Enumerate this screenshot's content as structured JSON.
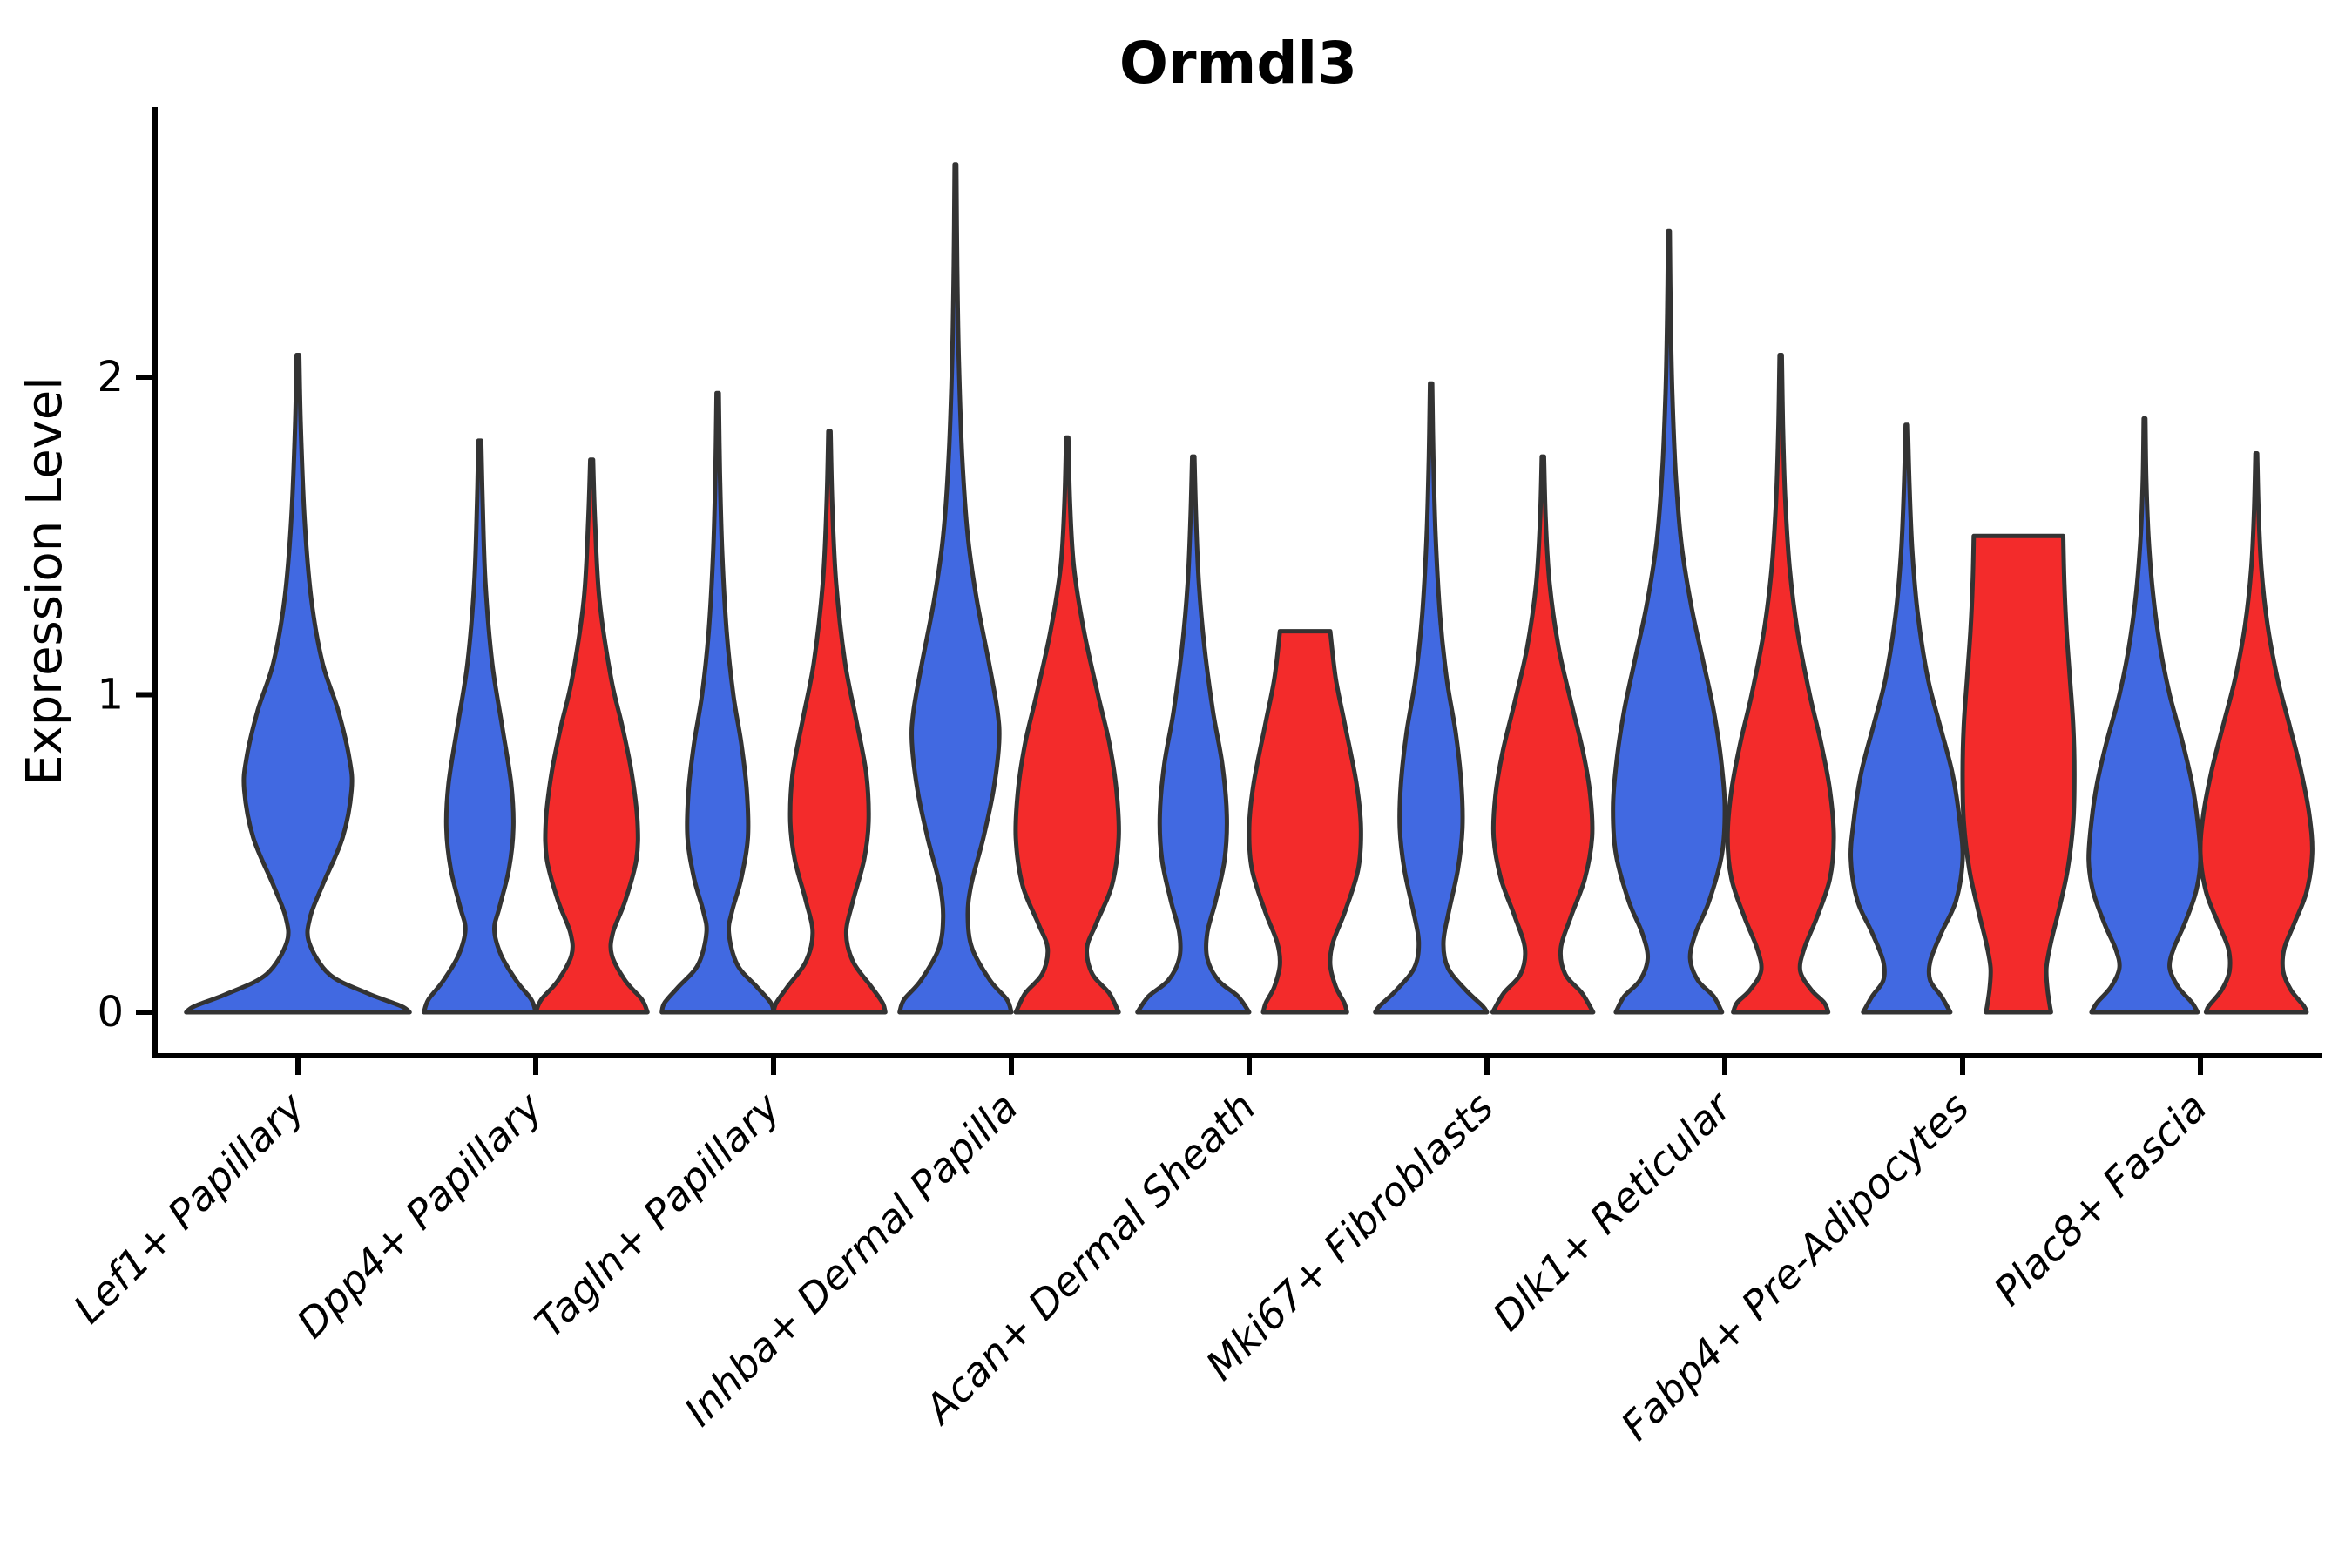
{
  "chart_data": {
    "type": "violin",
    "title": "Ormdl3",
    "ylabel": "Expression Level",
    "xlabel": "",
    "y_ticks": [
      0,
      1,
      2
    ],
    "ylim": [
      -0.14,
      2.85
    ],
    "grid": false,
    "legend": "none",
    "categories": [
      "Lef1+ Papillary",
      "Dpp4+ Papillary",
      "Tagln+ Papillary",
      "Inhba+ Dermal Papilla",
      "Acan+ Dermal Sheath",
      "Mki67+ Fibroblasts",
      "Dlk1+ Reticular",
      "Fabp4+ Pre-Adipocytes",
      "Plac8+ Fascia"
    ],
    "colors": {
      "blue": "#4169E1",
      "red": "#F32B2B",
      "outline": "#333333"
    },
    "violins": [
      {
        "category": "Lef1+ Papillary",
        "group": 0,
        "side": "blue",
        "single": true,
        "max_value": 2.07,
        "flat_top": false,
        "profile": [
          [
            2.07,
            0.012
          ],
          [
            1.85,
            0.025
          ],
          [
            1.55,
            0.06
          ],
          [
            1.3,
            0.12
          ],
          [
            1.1,
            0.22
          ],
          [
            0.95,
            0.36
          ],
          [
            0.8,
            0.46
          ],
          [
            0.7,
            0.48
          ],
          [
            0.55,
            0.4
          ],
          [
            0.4,
            0.22
          ],
          [
            0.3,
            0.11
          ],
          [
            0.22,
            0.1
          ],
          [
            0.12,
            0.28
          ],
          [
            0.06,
            0.62
          ],
          [
            0.02,
            0.92
          ],
          [
            0,
            1.0
          ]
        ]
      },
      {
        "category": "Dpp4+ Papillary",
        "group": 1,
        "side": "blue",
        "single": false,
        "max_value": 1.8,
        "flat_top": false,
        "profile": [
          [
            1.8,
            0.025
          ],
          [
            1.6,
            0.05
          ],
          [
            1.35,
            0.1
          ],
          [
            1.1,
            0.22
          ],
          [
            0.9,
            0.4
          ],
          [
            0.72,
            0.56
          ],
          [
            0.58,
            0.6
          ],
          [
            0.45,
            0.52
          ],
          [
            0.33,
            0.35
          ],
          [
            0.26,
            0.26
          ],
          [
            0.18,
            0.38
          ],
          [
            0.1,
            0.65
          ],
          [
            0.04,
            0.92
          ],
          [
            0,
            1.0
          ]
        ]
      },
      {
        "category": "Dpp4+ Papillary",
        "group": 1,
        "side": "red",
        "single": false,
        "max_value": 1.74,
        "flat_top": false,
        "profile": [
          [
            1.74,
            0.025
          ],
          [
            1.55,
            0.06
          ],
          [
            1.3,
            0.14
          ],
          [
            1.05,
            0.35
          ],
          [
            0.9,
            0.55
          ],
          [
            0.75,
            0.72
          ],
          [
            0.6,
            0.82
          ],
          [
            0.48,
            0.8
          ],
          [
            0.35,
            0.6
          ],
          [
            0.25,
            0.38
          ],
          [
            0.18,
            0.36
          ],
          [
            0.1,
            0.6
          ],
          [
            0.04,
            0.9
          ],
          [
            0,
            1.0
          ]
        ]
      },
      {
        "category": "Tagln+ Papillary",
        "group": 2,
        "side": "blue",
        "single": false,
        "max_value": 1.95,
        "flat_top": false,
        "profile": [
          [
            1.95,
            0.02
          ],
          [
            1.7,
            0.04
          ],
          [
            1.45,
            0.08
          ],
          [
            1.2,
            0.16
          ],
          [
            1.0,
            0.28
          ],
          [
            0.85,
            0.42
          ],
          [
            0.7,
            0.52
          ],
          [
            0.55,
            0.54
          ],
          [
            0.42,
            0.42
          ],
          [
            0.32,
            0.26
          ],
          [
            0.25,
            0.2
          ],
          [
            0.15,
            0.35
          ],
          [
            0.08,
            0.7
          ],
          [
            0.03,
            0.95
          ],
          [
            0,
            1.0
          ]
        ]
      },
      {
        "category": "Tagln+ Papillary",
        "group": 2,
        "side": "red",
        "single": false,
        "max_value": 1.83,
        "flat_top": false,
        "profile": [
          [
            1.83,
            0.02
          ],
          [
            1.6,
            0.05
          ],
          [
            1.35,
            0.12
          ],
          [
            1.1,
            0.28
          ],
          [
            0.92,
            0.48
          ],
          [
            0.75,
            0.66
          ],
          [
            0.6,
            0.7
          ],
          [
            0.48,
            0.62
          ],
          [
            0.35,
            0.42
          ],
          [
            0.25,
            0.3
          ],
          [
            0.16,
            0.42
          ],
          [
            0.08,
            0.75
          ],
          [
            0.03,
            0.95
          ],
          [
            0,
            1.0
          ]
        ]
      },
      {
        "category": "Inhba+ Dermal Papilla",
        "group": 3,
        "side": "blue",
        "single": false,
        "max_value": 2.67,
        "flat_top": false,
        "profile": [
          [
            2.67,
            0.015
          ],
          [
            2.35,
            0.03
          ],
          [
            2.05,
            0.06
          ],
          [
            1.75,
            0.12
          ],
          [
            1.5,
            0.22
          ],
          [
            1.3,
            0.38
          ],
          [
            1.1,
            0.6
          ],
          [
            0.95,
            0.75
          ],
          [
            0.85,
            0.78
          ],
          [
            0.7,
            0.68
          ],
          [
            0.55,
            0.5
          ],
          [
            0.4,
            0.28
          ],
          [
            0.3,
            0.22
          ],
          [
            0.2,
            0.3
          ],
          [
            0.1,
            0.62
          ],
          [
            0.04,
            0.92
          ],
          [
            0,
            1.0
          ]
        ]
      },
      {
        "category": "Inhba+ Dermal Papilla",
        "group": 3,
        "side": "red",
        "single": false,
        "max_value": 1.81,
        "flat_top": false,
        "profile": [
          [
            1.81,
            0.02
          ],
          [
            1.6,
            0.05
          ],
          [
            1.4,
            0.12
          ],
          [
            1.2,
            0.3
          ],
          [
            1.0,
            0.55
          ],
          [
            0.85,
            0.75
          ],
          [
            0.7,
            0.88
          ],
          [
            0.55,
            0.92
          ],
          [
            0.4,
            0.8
          ],
          [
            0.28,
            0.52
          ],
          [
            0.2,
            0.35
          ],
          [
            0.12,
            0.45
          ],
          [
            0.06,
            0.75
          ],
          [
            0,
            0.92
          ]
        ]
      },
      {
        "category": "Acan+ Dermal Sheath",
        "group": 4,
        "side": "blue",
        "single": false,
        "max_value": 1.75,
        "flat_top": false,
        "profile": [
          [
            1.75,
            0.02
          ],
          [
            1.55,
            0.05
          ],
          [
            1.35,
            0.1
          ],
          [
            1.15,
            0.2
          ],
          [
            0.95,
            0.35
          ],
          [
            0.78,
            0.52
          ],
          [
            0.62,
            0.6
          ],
          [
            0.48,
            0.56
          ],
          [
            0.35,
            0.4
          ],
          [
            0.25,
            0.25
          ],
          [
            0.17,
            0.25
          ],
          [
            0.1,
            0.45
          ],
          [
            0.05,
            0.8
          ],
          [
            0,
            1.0
          ]
        ]
      },
      {
        "category": "Acan+ Dermal Sheath",
        "group": 4,
        "side": "red",
        "single": false,
        "max_value": 1.2,
        "flat_top": true,
        "top_width": 0.45,
        "profile": [
          [
            1.2,
            0.45
          ],
          [
            1.05,
            0.55
          ],
          [
            0.9,
            0.72
          ],
          [
            0.72,
            0.92
          ],
          [
            0.58,
            1.0
          ],
          [
            0.45,
            0.95
          ],
          [
            0.32,
            0.72
          ],
          [
            0.22,
            0.5
          ],
          [
            0.15,
            0.45
          ],
          [
            0.08,
            0.55
          ],
          [
            0.03,
            0.7
          ],
          [
            0,
            0.75
          ]
        ]
      },
      {
        "category": "Mki67+ Fibroblasts",
        "group": 5,
        "side": "blue",
        "single": false,
        "max_value": 1.98,
        "flat_top": false,
        "profile": [
          [
            1.98,
            0.02
          ],
          [
            1.75,
            0.04
          ],
          [
            1.5,
            0.08
          ],
          [
            1.25,
            0.16
          ],
          [
            1.05,
            0.28
          ],
          [
            0.88,
            0.44
          ],
          [
            0.72,
            0.54
          ],
          [
            0.58,
            0.56
          ],
          [
            0.45,
            0.48
          ],
          [
            0.32,
            0.32
          ],
          [
            0.22,
            0.22
          ],
          [
            0.14,
            0.3
          ],
          [
            0.07,
            0.62
          ],
          [
            0.02,
            0.92
          ],
          [
            0,
            1.0
          ]
        ]
      },
      {
        "category": "Mki67+ Fibroblasts",
        "group": 5,
        "side": "red",
        "single": false,
        "max_value": 1.75,
        "flat_top": false,
        "profile": [
          [
            1.75,
            0.02
          ],
          [
            1.55,
            0.05
          ],
          [
            1.35,
            0.12
          ],
          [
            1.15,
            0.28
          ],
          [
            0.98,
            0.5
          ],
          [
            0.82,
            0.72
          ],
          [
            0.68,
            0.85
          ],
          [
            0.55,
            0.88
          ],
          [
            0.42,
            0.75
          ],
          [
            0.3,
            0.5
          ],
          [
            0.2,
            0.32
          ],
          [
            0.12,
            0.4
          ],
          [
            0.06,
            0.7
          ],
          [
            0,
            0.9
          ]
        ]
      },
      {
        "category": "Dlk1+ Reticular",
        "group": 6,
        "side": "blue",
        "single": false,
        "max_value": 2.46,
        "flat_top": false,
        "profile": [
          [
            2.46,
            0.015
          ],
          [
            2.2,
            0.03
          ],
          [
            1.95,
            0.06
          ],
          [
            1.7,
            0.12
          ],
          [
            1.48,
            0.22
          ],
          [
            1.28,
            0.4
          ],
          [
            1.1,
            0.62
          ],
          [
            0.95,
            0.8
          ],
          [
            0.8,
            0.93
          ],
          [
            0.65,
            1.0
          ],
          [
            0.5,
            0.95
          ],
          [
            0.35,
            0.72
          ],
          [
            0.25,
            0.48
          ],
          [
            0.17,
            0.38
          ],
          [
            0.1,
            0.52
          ],
          [
            0.05,
            0.8
          ],
          [
            0,
            0.95
          ]
        ]
      },
      {
        "category": "Dlk1+ Reticular",
        "group": 6,
        "side": "red",
        "single": false,
        "max_value": 2.07,
        "flat_top": false,
        "profile": [
          [
            2.07,
            0.02
          ],
          [
            1.85,
            0.04
          ],
          [
            1.62,
            0.08
          ],
          [
            1.4,
            0.16
          ],
          [
            1.2,
            0.3
          ],
          [
            1.0,
            0.52
          ],
          [
            0.85,
            0.72
          ],
          [
            0.7,
            0.88
          ],
          [
            0.55,
            0.95
          ],
          [
            0.42,
            0.88
          ],
          [
            0.3,
            0.65
          ],
          [
            0.2,
            0.42
          ],
          [
            0.13,
            0.35
          ],
          [
            0.07,
            0.55
          ],
          [
            0.03,
            0.78
          ],
          [
            0,
            0.85
          ]
        ]
      },
      {
        "category": "Fabp4+ Pre-Adipocytes",
        "group": 7,
        "side": "blue",
        "single": false,
        "max_value": 1.85,
        "flat_top": false,
        "profile": [
          [
            1.85,
            0.02
          ],
          [
            1.65,
            0.05
          ],
          [
            1.45,
            0.1
          ],
          [
            1.25,
            0.2
          ],
          [
            1.05,
            0.38
          ],
          [
            0.9,
            0.6
          ],
          [
            0.75,
            0.82
          ],
          [
            0.6,
            0.95
          ],
          [
            0.48,
            1.0
          ],
          [
            0.35,
            0.88
          ],
          [
            0.25,
            0.62
          ],
          [
            0.16,
            0.42
          ],
          [
            0.1,
            0.42
          ],
          [
            0.05,
            0.62
          ],
          [
            0,
            0.78
          ]
        ]
      },
      {
        "category": "Fabp4+ Pre-Adipocytes",
        "group": 7,
        "side": "red",
        "single": false,
        "max_value": 1.5,
        "flat_top": true,
        "top_width": 0.8,
        "profile": [
          [
            1.5,
            0.8
          ],
          [
            1.35,
            0.82
          ],
          [
            1.2,
            0.86
          ],
          [
            1.05,
            0.92
          ],
          [
            0.9,
            0.98
          ],
          [
            0.75,
            1.0
          ],
          [
            0.6,
            0.98
          ],
          [
            0.45,
            0.88
          ],
          [
            0.32,
            0.72
          ],
          [
            0.22,
            0.58
          ],
          [
            0.14,
            0.5
          ],
          [
            0.07,
            0.52
          ],
          [
            0,
            0.58
          ]
        ]
      },
      {
        "category": "Plac8+ Fascia",
        "group": 8,
        "side": "blue",
        "single": false,
        "max_value": 1.87,
        "flat_top": false,
        "profile": [
          [
            1.87,
            0.015
          ],
          [
            1.68,
            0.03
          ],
          [
            1.5,
            0.07
          ],
          [
            1.32,
            0.15
          ],
          [
            1.15,
            0.28
          ],
          [
            1.0,
            0.45
          ],
          [
            0.85,
            0.68
          ],
          [
            0.72,
            0.85
          ],
          [
            0.6,
            0.95
          ],
          [
            0.48,
            1.0
          ],
          [
            0.38,
            0.92
          ],
          [
            0.28,
            0.72
          ],
          [
            0.2,
            0.52
          ],
          [
            0.14,
            0.45
          ],
          [
            0.08,
            0.6
          ],
          [
            0.03,
            0.85
          ],
          [
            0,
            0.95
          ]
        ]
      },
      {
        "category": "Plac8+ Fascia",
        "group": 8,
        "side": "red",
        "single": false,
        "max_value": 1.76,
        "flat_top": false,
        "profile": [
          [
            1.76,
            0.015
          ],
          [
            1.58,
            0.04
          ],
          [
            1.4,
            0.09
          ],
          [
            1.22,
            0.2
          ],
          [
            1.05,
            0.38
          ],
          [
            0.9,
            0.6
          ],
          [
            0.76,
            0.8
          ],
          [
            0.62,
            0.95
          ],
          [
            0.5,
            1.0
          ],
          [
            0.38,
            0.9
          ],
          [
            0.28,
            0.68
          ],
          [
            0.2,
            0.5
          ],
          [
            0.13,
            0.48
          ],
          [
            0.07,
            0.62
          ],
          [
            0.02,
            0.85
          ],
          [
            0,
            0.9
          ]
        ]
      }
    ]
  }
}
